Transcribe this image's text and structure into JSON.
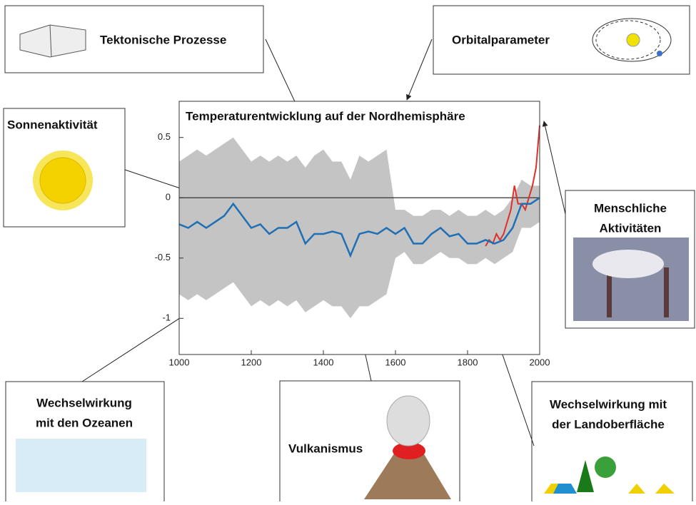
{
  "chart_data": {
    "type": "line",
    "title": "Temperaturentwicklung auf der Nordhemisphäre",
    "x": [
      1000,
      1025,
      1050,
      1075,
      1100,
      1125,
      1150,
      1175,
      1200,
      1225,
      1250,
      1275,
      1300,
      1325,
      1350,
      1375,
      1400,
      1425,
      1450,
      1475,
      1500,
      1525,
      1550,
      1575,
      1600,
      1625,
      1650,
      1675,
      1700,
      1725,
      1750,
      1775,
      1800,
      1825,
      1850,
      1875,
      1900,
      1925,
      1950,
      1975,
      2000
    ],
    "series": [
      {
        "color": "#1f6fb5",
        "values": [
          -0.22,
          -0.25,
          -0.2,
          -0.25,
          -0.2,
          -0.15,
          -0.05,
          -0.15,
          -0.25,
          -0.22,
          -0.3,
          -0.25,
          -0.25,
          -0.2,
          -0.38,
          -0.3,
          -0.3,
          -0.28,
          -0.3,
          -0.48,
          -0.3,
          -0.28,
          -0.3,
          -0.25,
          -0.3,
          -0.25,
          -0.38,
          -0.38,
          -0.3,
          -0.25,
          -0.32,
          -0.3,
          -0.38,
          -0.38,
          -0.35,
          -0.38,
          -0.35,
          -0.25,
          -0.05,
          -0.05,
          0.0
        ]
      }
    ],
    "band": {
      "color": "#c4c4c4",
      "upper": [
        0.3,
        0.35,
        0.4,
        0.35,
        0.4,
        0.45,
        0.5,
        0.4,
        0.3,
        0.35,
        0.3,
        0.35,
        0.3,
        0.35,
        0.25,
        0.35,
        0.4,
        0.3,
        0.3,
        0.15,
        0.35,
        0.3,
        0.35,
        0.4,
        -0.1,
        -0.1,
        -0.15,
        -0.15,
        -0.1,
        -0.1,
        -0.15,
        -0.1,
        -0.15,
        -0.15,
        -0.1,
        -0.15,
        -0.1,
        0.0,
        0.15,
        0.1,
        0.1
      ],
      "lower": [
        -0.8,
        -0.85,
        -0.8,
        -0.85,
        -0.8,
        -0.75,
        -0.7,
        -0.8,
        -0.9,
        -0.85,
        -0.9,
        -0.85,
        -0.9,
        -0.85,
        -0.95,
        -0.9,
        -0.85,
        -0.9,
        -0.9,
        -1.0,
        -0.9,
        -0.9,
        -0.85,
        -0.8,
        -0.5,
        -0.45,
        -0.55,
        -0.55,
        -0.5,
        -0.45,
        -0.5,
        -0.5,
        -0.55,
        -0.55,
        -0.5,
        -0.55,
        -0.5,
        -0.45,
        -0.25,
        -0.25,
        -0.2
      ]
    },
    "red": {
      "color": "#e0302a",
      "x": [
        1850,
        1860,
        1870,
        1880,
        1890,
        1900,
        1910,
        1920,
        1930,
        1940,
        1950,
        1960,
        1970,
        1980,
        1990,
        2000
      ],
      "values": [
        -0.4,
        -0.35,
        -0.38,
        -0.3,
        -0.35,
        -0.3,
        -0.2,
        -0.1,
        0.1,
        -0.05,
        -0.05,
        -0.1,
        0.0,
        0.1,
        0.25,
        0.6
      ]
    },
    "hline": 0.0,
    "xlim": [
      1000,
      2000
    ],
    "xticks": [
      1000,
      1200,
      1400,
      1600,
      1800,
      2000
    ],
    "ylim": [
      -1.3,
      0.8
    ],
    "yticks": [
      0.5,
      0.0,
      -0.5,
      -1.0
    ]
  },
  "boxes": [
    {
      "lines": [
        "Tektonische Prozesse"
      ]
    },
    {
      "lines": [
        "Orbitalparameter"
      ]
    },
    {
      "lines": [
        "Sonnenaktivität"
      ]
    },
    {
      "lines": [
        "Menschliche",
        "Aktivitäten"
      ]
    },
    {
      "lines": [
        "Wechselwirkung",
        "mit den Ozeanen"
      ]
    },
    {
      "lines": [
        "Vulkanismus"
      ]
    },
    {
      "lines": [
        "Wechselwirkung mit",
        "der Landoberfläche"
      ]
    }
  ]
}
